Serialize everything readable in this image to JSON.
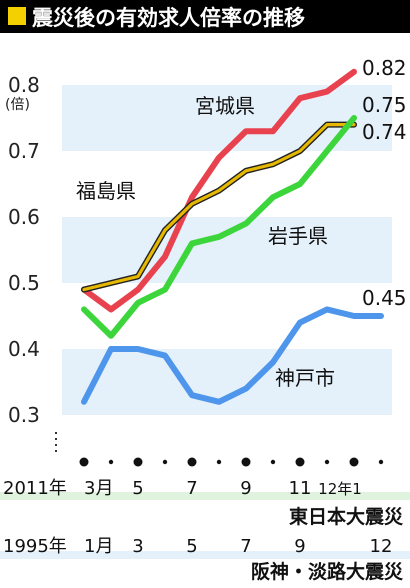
{
  "title": "震災後の有効求人倍率の推移",
  "colors": {
    "title_bar": "#000000",
    "title_mark": "#f5d000",
    "title_text": "#ffffff",
    "band": "#e4f0fa",
    "miyagi": "#e8424f",
    "iwate": "#3cd63c",
    "fukushima": "#e6b800",
    "kobe": "#4e96ec"
  },
  "chart_data": {
    "type": "line",
    "title": "震災後の有効求人倍率の推移",
    "unit": "(倍)",
    "ylim": [
      0.3,
      0.85
    ],
    "y_ticks": [
      "0.8",
      "0.7",
      "0.6",
      "0.5",
      "0.4",
      "0.3"
    ],
    "x_points": 12,
    "series": [
      {
        "name": "宮城県",
        "color": "#e8424f",
        "values": [
          0.49,
          0.46,
          0.49,
          0.54,
          0.63,
          0.69,
          0.73,
          0.73,
          0.78,
          0.79,
          0.82,
          null
        ],
        "end_label": "0.82"
      },
      {
        "name": "福島県",
        "color": "#e6b800",
        "values": [
          0.49,
          0.5,
          0.51,
          0.58,
          0.62,
          0.64,
          0.67,
          0.68,
          0.7,
          0.74,
          0.74,
          null
        ],
        "end_label": "0.74"
      },
      {
        "name": "岩手県",
        "color": "#3cd63c",
        "values": [
          0.46,
          0.42,
          0.47,
          0.49,
          0.56,
          0.57,
          0.59,
          0.63,
          0.65,
          0.7,
          0.75,
          null
        ],
        "end_label": "0.75"
      },
      {
        "name": "神戸市",
        "color": "#4e96ec",
        "values": [
          0.32,
          0.4,
          0.4,
          0.39,
          0.33,
          0.32,
          0.34,
          0.38,
          0.44,
          0.46,
          0.45,
          0.45
        ],
        "end_label": "0.45"
      }
    ],
    "x_axis_2011": {
      "year_label": "2011年",
      "ticks": [
        "3月",
        "5",
        "7",
        "9",
        "11",
        "12年1"
      ],
      "caption": "東日本大震災"
    },
    "x_axis_1995": {
      "year_label": "1995年",
      "ticks": [
        "1月",
        "3",
        "5",
        "7",
        "9",
        "12"
      ],
      "caption": "阪神・淡路大震災"
    }
  }
}
